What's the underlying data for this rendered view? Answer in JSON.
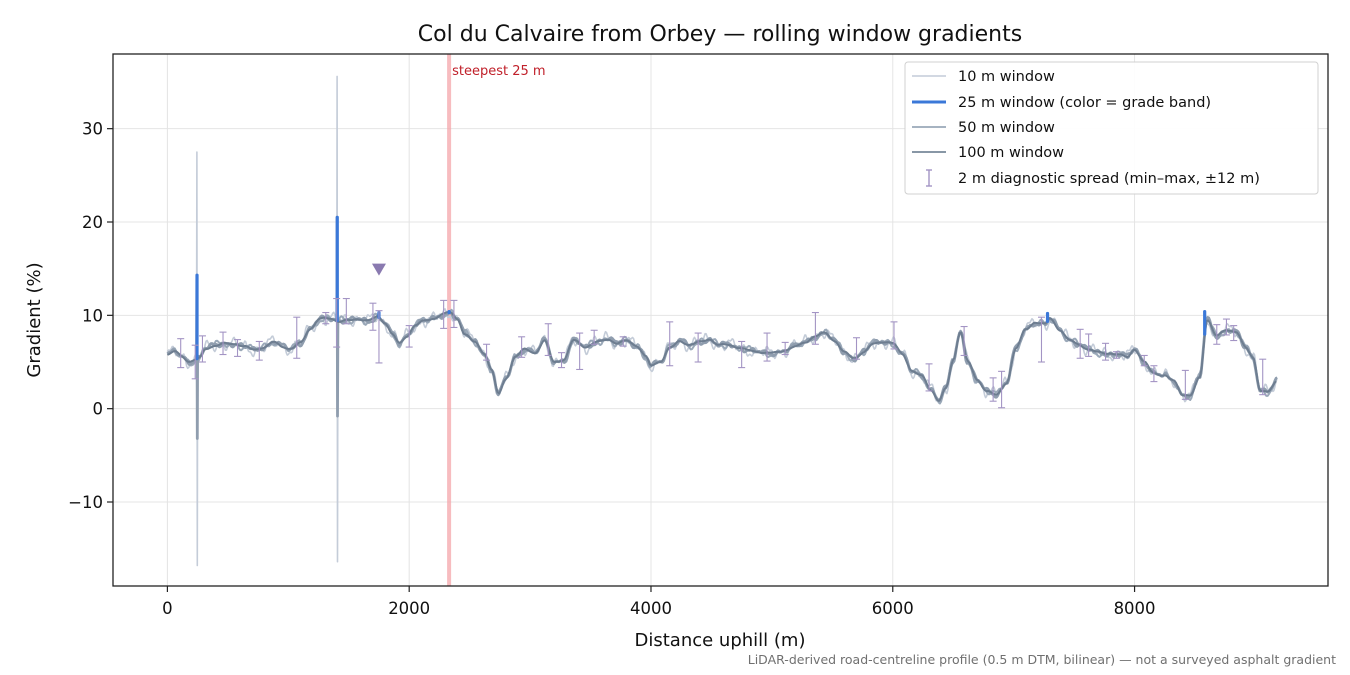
{
  "chart_data": {
    "type": "line",
    "title": "Col du Calvaire from Orbey — rolling window gradients",
    "xlabel": "Distance uphill (m)",
    "ylabel": "Gradient (%)",
    "xlim": [
      -450,
      9600
    ],
    "ylim": [
      -19,
      38
    ],
    "xticks": [
      0,
      2000,
      4000,
      6000,
      8000
    ],
    "xtick_labels": [
      "0",
      "2000",
      "4000",
      "6000",
      "8000"
    ],
    "yticks": [
      -10,
      0,
      10,
      20,
      30
    ],
    "ytick_labels": [
      "−10",
      "0",
      "10",
      "20",
      "30"
    ],
    "grid": true,
    "legend_position": "top-right",
    "legend": [
      {
        "key": "w10",
        "label": "10 m window",
        "style": "line",
        "color": "#c4ccd8"
      },
      {
        "key": "w25",
        "label": "25 m window (color = grade band)",
        "style": "thick-line",
        "color": "#3b78d8"
      },
      {
        "key": "w50",
        "label": "50 m window",
        "style": "line",
        "color": "#9aa8b8"
      },
      {
        "key": "w100",
        "label": "100 m window",
        "style": "line",
        "color": "#77889a"
      },
      {
        "key": "spread",
        "label": "2 m diagnostic spread (min–max, ±12 m)",
        "style": "errorbar",
        "color": "#a394c4"
      }
    ],
    "steepest_marker": {
      "x": 2330,
      "label": "steepest 25 m"
    },
    "peak_marker": {
      "x": 1750,
      "y": 15
    },
    "anchors": [
      [
        0,
        5.7
      ],
      [
        60,
        6.1
      ],
      [
        120,
        5.6
      ],
      [
        180,
        5.0
      ],
      [
        260,
        5.4
      ],
      [
        320,
        6.5
      ],
      [
        400,
        6.8
      ],
      [
        480,
        7.0
      ],
      [
        560,
        6.9
      ],
      [
        640,
        6.6
      ],
      [
        720,
        6.3
      ],
      [
        800,
        6.6
      ],
      [
        880,
        7.2
      ],
      [
        950,
        6.7
      ],
      [
        1020,
        6.4
      ],
      [
        1100,
        7.0
      ],
      [
        1180,
        8.5
      ],
      [
        1260,
        9.6
      ],
      [
        1340,
        9.7
      ],
      [
        1420,
        9.4
      ],
      [
        1500,
        9.5
      ],
      [
        1580,
        9.6
      ],
      [
        1660,
        9.4
      ],
      [
        1740,
        9.8
      ],
      [
        1800,
        9.2
      ],
      [
        1860,
        8.0
      ],
      [
        1920,
        7.0
      ],
      [
        1980,
        7.8
      ],
      [
        2050,
        9.0
      ],
      [
        2120,
        9.4
      ],
      [
        2200,
        9.6
      ],
      [
        2280,
        10.1
      ],
      [
        2340,
        10.3
      ],
      [
        2400,
        9.6
      ],
      [
        2460,
        8.0
      ],
      [
        2540,
        7.2
      ],
      [
        2620,
        6.0
      ],
      [
        2680,
        4.2
      ],
      [
        2740,
        1.5
      ],
      [
        2800,
        3.2
      ],
      [
        2880,
        5.6
      ],
      [
        2960,
        6.4
      ],
      [
        3040,
        6.0
      ],
      [
        3120,
        7.3
      ],
      [
        3200,
        5.0
      ],
      [
        3280,
        5.2
      ],
      [
        3360,
        7.3
      ],
      [
        3460,
        6.6
      ],
      [
        3560,
        7.2
      ],
      [
        3640,
        7.5
      ],
      [
        3720,
        7.0
      ],
      [
        3800,
        7.3
      ],
      [
        3880,
        6.7
      ],
      [
        3960,
        5.5
      ],
      [
        4000,
        4.6
      ],
      [
        4080,
        5.1
      ],
      [
        4160,
        6.6
      ],
      [
        4240,
        7.3
      ],
      [
        4320,
        6.8
      ],
      [
        4400,
        7.1
      ],
      [
        4480,
        7.4
      ],
      [
        4560,
        6.8
      ],
      [
        4640,
        6.9
      ],
      [
        4720,
        6.6
      ],
      [
        4800,
        6.3
      ],
      [
        4880,
        6.1
      ],
      [
        4960,
        5.9
      ],
      [
        5040,
        6.0
      ],
      [
        5120,
        6.3
      ],
      [
        5200,
        6.7
      ],
      [
        5280,
        7.2
      ],
      [
        5360,
        7.8
      ],
      [
        5440,
        8.1
      ],
      [
        5520,
        7.2
      ],
      [
        5600,
        6.0
      ],
      [
        5680,
        5.4
      ],
      [
        5760,
        6.1
      ],
      [
        5840,
        7.0
      ],
      [
        5920,
        7.2
      ],
      [
        6000,
        7.0
      ],
      [
        6080,
        5.8
      ],
      [
        6160,
        4.0
      ],
      [
        6240,
        3.5
      ],
      [
        6320,
        2.0
      ],
      [
        6380,
        0.9
      ],
      [
        6440,
        2.2
      ],
      [
        6500,
        5.2
      ],
      [
        6560,
        8.3
      ],
      [
        6620,
        5.0
      ],
      [
        6700,
        3.0
      ],
      [
        6780,
        1.9
      ],
      [
        6860,
        1.5
      ],
      [
        6940,
        2.8
      ],
      [
        7020,
        6.5
      ],
      [
        7100,
        8.5
      ],
      [
        7180,
        9.2
      ],
      [
        7260,
        9.0
      ],
      [
        7300,
        9.7
      ],
      [
        7380,
        8.5
      ],
      [
        7460,
        7.4
      ],
      [
        7540,
        6.9
      ],
      [
        7620,
        6.3
      ],
      [
        7700,
        6.0
      ],
      [
        7780,
        5.9
      ],
      [
        7860,
        5.8
      ],
      [
        7940,
        5.6
      ],
      [
        8000,
        6.4
      ],
      [
        8080,
        5.0
      ],
      [
        8160,
        3.8
      ],
      [
        8240,
        3.5
      ],
      [
        8320,
        3.0
      ],
      [
        8400,
        1.5
      ],
      [
        8460,
        1.4
      ],
      [
        8540,
        3.4
      ],
      [
        8600,
        9.6
      ],
      [
        8680,
        7.8
      ],
      [
        8760,
        8.4
      ],
      [
        8840,
        8.2
      ],
      [
        8920,
        6.5
      ],
      [
        8980,
        5.5
      ],
      [
        9040,
        2.0
      ],
      [
        9100,
        1.8
      ],
      [
        9180,
        3.0
      ]
    ],
    "spikes": [
      {
        "x": 245,
        "w10": [
          27.5,
          -16.8
        ],
        "w25": [
          14.3,
          -3.2
        ],
        "w50": [
          8.2,
          -1.0
        ]
      },
      {
        "x": 1405,
        "w10": [
          35.6,
          -16.4
        ],
        "w25": [
          20.5,
          -0.8
        ],
        "w50": [
          11.5,
          7.0
        ]
      }
    ],
    "error_bars": [
      [
        110,
        6.1,
        7.5,
        4.4
      ],
      [
        230,
        6.0,
        6.8,
        3.2
      ],
      [
        290,
        5.6,
        7.8,
        5.0
      ],
      [
        460,
        6.9,
        8.2,
        5.8
      ],
      [
        580,
        6.8,
        7.4,
        5.6
      ],
      [
        760,
        6.4,
        7.2,
        5.2
      ],
      [
        1070,
        6.9,
        9.8,
        5.4
      ],
      [
        1310,
        9.5,
        10.3,
        9.1
      ],
      [
        1400,
        9.4,
        11.8,
        6.6
      ],
      [
        1480,
        9.6,
        11.8,
        9.1
      ],
      [
        1700,
        9.6,
        11.3,
        8.4
      ],
      [
        1750,
        9.4,
        10.5,
        4.9
      ],
      [
        2000,
        7.6,
        8.9,
        6.6
      ],
      [
        2285,
        10.1,
        11.6,
        8.6
      ],
      [
        2370,
        10.2,
        11.6,
        8.7
      ],
      [
        2640,
        6.0,
        6.9,
        5.2
      ],
      [
        2930,
        6.3,
        7.7,
        5.5
      ],
      [
        3150,
        6.7,
        9.1,
        5.7
      ],
      [
        3260,
        5.0,
        6.0,
        4.4
      ],
      [
        3410,
        6.3,
        8.1,
        4.2
      ],
      [
        3530,
        7.2,
        8.4,
        6.9
      ],
      [
        3770,
        7.2,
        7.7,
        6.7
      ],
      [
        4155,
        6.4,
        9.3,
        4.6
      ],
      [
        4390,
        7.1,
        8.1,
        5.0
      ],
      [
        4750,
        6.5,
        7.2,
        4.4
      ],
      [
        4960,
        6.1,
        8.1,
        5.1
      ],
      [
        5110,
        6.3,
        7.1,
        5.8
      ],
      [
        5360,
        7.7,
        10.3,
        6.9
      ],
      [
        5700,
        6.0,
        7.6,
        5.3
      ],
      [
        6010,
        6.8,
        9.3,
        6.4
      ],
      [
        6300,
        3.0,
        4.8,
        1.9
      ],
      [
        6590,
        6.5,
        8.8,
        5.7
      ],
      [
        6830,
        1.6,
        3.3,
        0.8
      ],
      [
        6900,
        1.7,
        4.0,
        0.1
      ],
      [
        7230,
        8.8,
        9.8,
        5.0
      ],
      [
        7550,
        7.0,
        8.5,
        5.4
      ],
      [
        7620,
        6.5,
        8.0,
        5.6
      ],
      [
        7760,
        6.0,
        7.0,
        5.2
      ],
      [
        7850,
        5.8,
        6.1,
        5.4
      ],
      [
        8080,
        5.0,
        5.7,
        4.6
      ],
      [
        8160,
        3.6,
        4.6,
        2.9
      ],
      [
        8420,
        1.4,
        4.1,
        1.0
      ],
      [
        8680,
        8.0,
        9.0,
        6.9
      ],
      [
        8760,
        8.3,
        9.6,
        7.9
      ],
      [
        8820,
        8.0,
        8.9,
        7.3
      ],
      [
        9060,
        2.1,
        5.3,
        1.5
      ]
    ],
    "highlight_25m": [
      [
        245,
        14.3
      ],
      [
        1405,
        20.5
      ],
      [
        1750,
        10.3
      ],
      [
        2330,
        10.4
      ],
      [
        7280,
        10.2
      ],
      [
        8580,
        10.4
      ]
    ],
    "footnote": "LiDAR-derived road-centreline profile (0.5 m DTM, bilinear) — not a surveyed asphalt gradient"
  }
}
